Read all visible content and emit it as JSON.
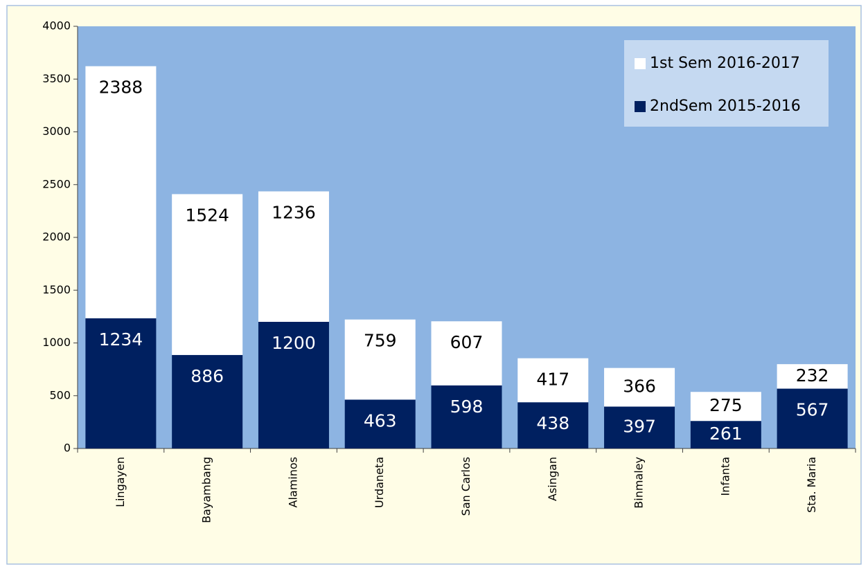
{
  "chart_data": {
    "type": "stacked_bar",
    "categories": [
      "Lingayen",
      "Bayambang",
      "Alaminos",
      "Urdaneta",
      "San Carlos",
      "Asingan",
      "Binmaley",
      "Infanta",
      "Sta. Maria"
    ],
    "series": [
      {
        "name": "2ndSem 2015-2016",
        "color": "#002060",
        "values": [
          1234,
          886,
          1200,
          463,
          598,
          438,
          397,
          261,
          567
        ]
      },
      {
        "name": "1st Sem 2016-2017",
        "color": "#ffffff",
        "values": [
          2388,
          1524,
          1236,
          759,
          607,
          417,
          366,
          275,
          232
        ]
      }
    ],
    "ylim": [
      0,
      4000
    ],
    "yticks": [
      0,
      500,
      1000,
      1500,
      2000,
      2500,
      3000,
      3500,
      4000
    ],
    "legend": "upper right"
  }
}
